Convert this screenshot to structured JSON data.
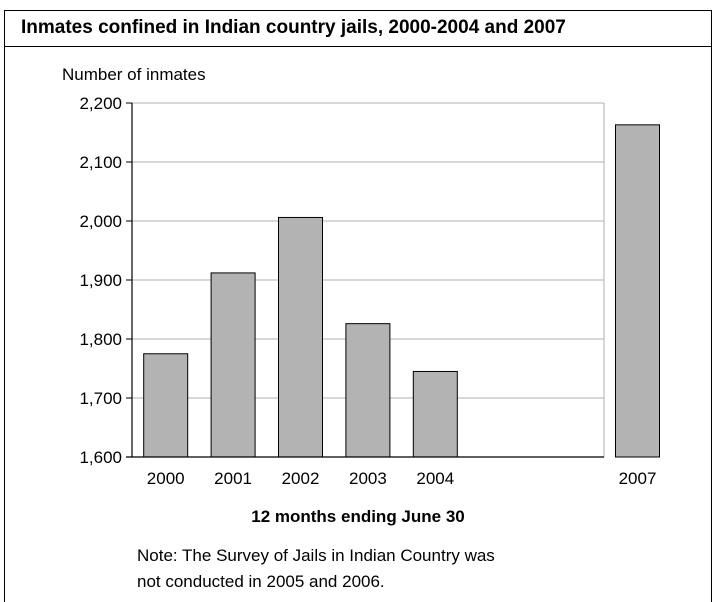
{
  "chart_data": {
    "type": "bar",
    "title": "Inmates confined in Indian country jails, 2000-2004 and 2007",
    "ylabel": "Number of inmates",
    "xlabel": "12 months ending June 30",
    "categories": [
      "2000",
      "2001",
      "2002",
      "2003",
      "2004",
      "2005",
      "2006",
      "2007"
    ],
    "x_tick_labels": [
      "2000",
      "2001",
      "2002",
      "2003",
      "2004",
      "",
      "",
      "2007"
    ],
    "values": [
      1775,
      1912,
      2006,
      1826,
      1745,
      null,
      null,
      2163
    ],
    "ylim": [
      1600,
      2200
    ],
    "y_ticks": [
      1600,
      1700,
      1800,
      1900,
      2000,
      2100,
      2200
    ],
    "y_tick_labels": [
      "1,600",
      "1,700",
      "1,800",
      "1,900",
      "2,000",
      "2,100",
      "2,200"
    ],
    "grid": "horizontal",
    "bar_color": "#b3b3b3"
  },
  "note": {
    "line1": "Note: The Survey of Jails in Indian Country was",
    "line2": "not conducted in 2005 and 2006."
  }
}
